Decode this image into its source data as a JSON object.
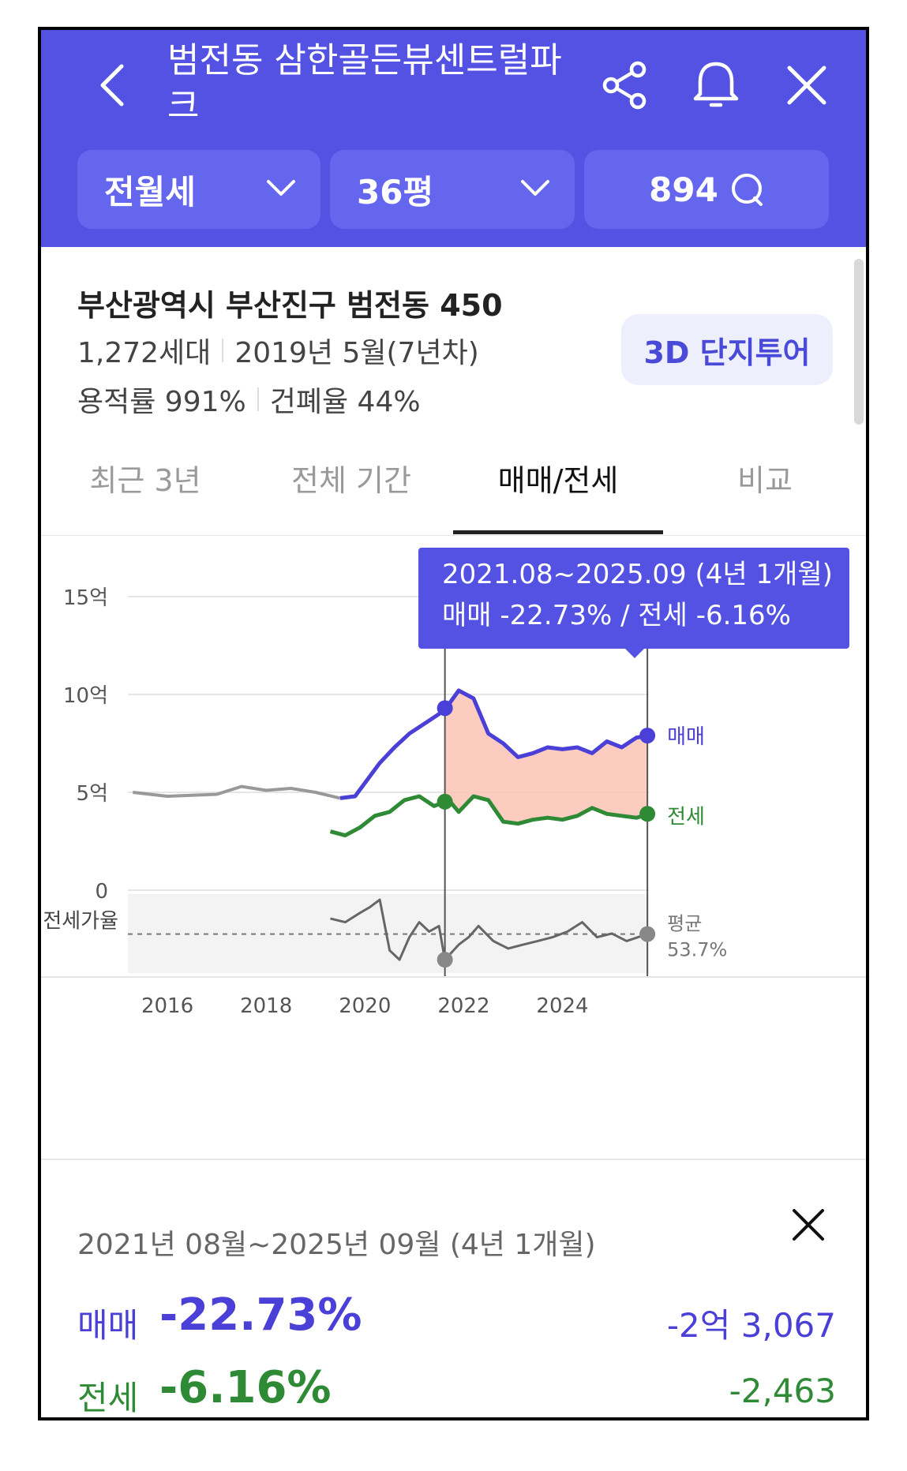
{
  "header": {
    "title": "범전동 삼한골든뷰센트럴파크",
    "filter_type": "전월세",
    "filter_size": "36평",
    "chat_count": "894"
  },
  "complex": {
    "address": "부산광역시 부산진구 범전동 450",
    "households": "1,272세대",
    "built": "2019년 5월(7년차)",
    "floor_area_ratio": "용적률 991%",
    "coverage_ratio": "건폐율 44%",
    "tour_button": "3D 단지투어"
  },
  "tabs": [
    {
      "label": "최근 3년",
      "active": false
    },
    {
      "label": "전체 기간",
      "active": false
    },
    {
      "label": "매매/전세",
      "active": true
    },
    {
      "label": "비교",
      "active": false
    }
  ],
  "tooltip": {
    "line1": "2021.08~2025.09 (4년 1개월)",
    "line2": "매매 -22.73%  /  전세 -6.16%"
  },
  "chart_data": {
    "type": "line",
    "y_ticks": [
      "15억",
      "10억",
      "5억",
      "0"
    ],
    "x_ticks": [
      "2016",
      "2018",
      "2020",
      "2022",
      "2024"
    ],
    "ylim": [
      0,
      15
    ],
    "ratio_label": "전세가율",
    "average_label": "평균",
    "average_value": "53.7%",
    "series": [
      {
        "name": "매매",
        "color": "#4a3fd6",
        "x": [
          2015.3,
          2016,
          2017,
          2017.5,
          2018,
          2018.5,
          2019,
          2019.5,
          2019.8,
          2020.3,
          2020.6,
          2020.9,
          2021.2,
          2021.5,
          2021.7,
          2021.9,
          2022.2,
          2022.5,
          2022.8,
          2023.1,
          2023.4,
          2023.7,
          2024.0,
          2024.3,
          2024.6,
          2024.9,
          2025.2,
          2025.5,
          2025.75
        ],
        "values": [
          5.0,
          4.8,
          4.9,
          5.3,
          5.1,
          5.2,
          5.0,
          4.7,
          4.8,
          6.5,
          7.3,
          8.0,
          8.5,
          9.0,
          9.5,
          10.2,
          9.8,
          8.0,
          7.5,
          6.8,
          7.0,
          7.3,
          7.2,
          7.3,
          7.0,
          7.6,
          7.3,
          7.8,
          7.9
        ]
      },
      {
        "name": "전세",
        "color": "#2f8a36",
        "x": [
          2019.3,
          2019.6,
          2019.9,
          2020.2,
          2020.5,
          2020.8,
          2021.1,
          2021.4,
          2021.7,
          2021.9,
          2022.2,
          2022.5,
          2022.8,
          2023.1,
          2023.4,
          2023.7,
          2024.0,
          2024.3,
          2024.6,
          2024.9,
          2025.2,
          2025.5,
          2025.75
        ],
        "values": [
          3.0,
          2.8,
          3.2,
          3.8,
          4.0,
          4.6,
          4.8,
          4.3,
          4.6,
          4.0,
          4.8,
          4.6,
          3.5,
          3.4,
          3.6,
          3.7,
          3.6,
          3.8,
          4.2,
          3.9,
          3.8,
          3.7,
          3.9
        ]
      }
    ],
    "highlight_range": [
      "2021.08",
      "2025.09"
    ],
    "highlight_from": 2021.62,
    "highlight_to": 2025.72,
    "highlight_color": "#fbc3b5",
    "ratio_series": {
      "x": [
        2019.3,
        2019.6,
        2019.9,
        2020.1,
        2020.3,
        2020.5,
        2020.7,
        2020.9,
        2021.1,
        2021.3,
        2021.5,
        2021.62,
        2021.9,
        2022.1,
        2022.3,
        2022.6,
        2022.9,
        2023.2,
        2023.5,
        2023.8,
        2024.1,
        2024.4,
        2024.7,
        2025.0,
        2025.3,
        2025.72
      ],
      "values": [
        62,
        60,
        65,
        68,
        72,
        45,
        40,
        52,
        60,
        55,
        58,
        40,
        48,
        52,
        58,
        50,
        46,
        48,
        50,
        52,
        55,
        60,
        52,
        54,
        50,
        53.7
      ]
    },
    "series_labels": [
      "매매",
      "전세"
    ]
  },
  "summary": {
    "period": "2021년 08월~2025년 09월 (4년 1개월)",
    "sale_label": "매매",
    "sale_pct": "-22.73%",
    "sale_amount": "-2억 3,067",
    "jeonse_label": "전세",
    "jeonse_pct": "-6.16%",
    "jeonse_amount": "-2,463"
  },
  "colors": {
    "brand": "#5352e3",
    "sale": "#4a3fd6",
    "jeonse": "#2f8a36"
  }
}
